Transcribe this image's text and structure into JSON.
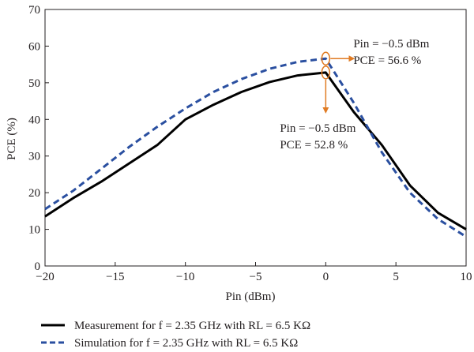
{
  "chart_data": {
    "type": "line",
    "xlabel": "Pin (dBm)",
    "ylabel": "PCE (%)",
    "xlim": [
      -20,
      10
    ],
    "ylim": [
      0,
      70
    ],
    "xticks": [
      -20,
      -15,
      -10,
      -5,
      0,
      5,
      10
    ],
    "yticks": [
      0,
      10,
      20,
      30,
      40,
      50,
      60,
      70
    ],
    "xtick_labels": [
      "−20",
      "−15",
      "−10",
      "−5",
      "0",
      "5",
      "10"
    ],
    "ytick_labels": [
      "0",
      "10",
      "20",
      "30",
      "40",
      "50",
      "60",
      "70"
    ],
    "grid": false,
    "legend_position": "bottom",
    "series": [
      {
        "name": "Measurement for f = 2.35 GHz with RL = 6.5 KΩ",
        "style": "solid",
        "color": "#000000",
        "x": [
          -20,
          -18,
          -16,
          -14,
          -12,
          -10,
          -8,
          -6,
          -4,
          -2,
          0,
          2,
          4,
          6,
          8,
          10
        ],
        "y": [
          13.5,
          18.5,
          23,
          28,
          33,
          40,
          44,
          47.5,
          50.2,
          52,
          52.8,
          42,
          33,
          22,
          14.5,
          10
        ]
      },
      {
        "name": "Simulation for f = 2.35 GHz with RL = 6.5 KΩ",
        "style": "dashed",
        "color": "#2a4fa0",
        "x": [
          -20,
          -18,
          -16,
          -14,
          -12,
          -10,
          -8,
          -6,
          -4,
          -2,
          0,
          2,
          4,
          6,
          8,
          10
        ],
        "y": [
          15.5,
          20.5,
          26.5,
          32.5,
          38,
          43,
          47.5,
          51,
          53.8,
          55.7,
          56.6,
          44.5,
          31,
          20,
          12.8,
          8
        ]
      }
    ],
    "annotations": [
      {
        "line1": "Pin = −0.5 dBm",
        "line2": "PCE = 56.6 %",
        "target_x": 0,
        "target_y": 56.6,
        "arrow": "right"
      },
      {
        "line1": "Pin = −0.5 dBm",
        "line2": "PCE = 52.8 %",
        "target_x": 0,
        "target_y": 52.8,
        "arrow": "down"
      }
    ],
    "colors": {
      "annotation": "#e07b23",
      "axis": "#231f20"
    }
  }
}
